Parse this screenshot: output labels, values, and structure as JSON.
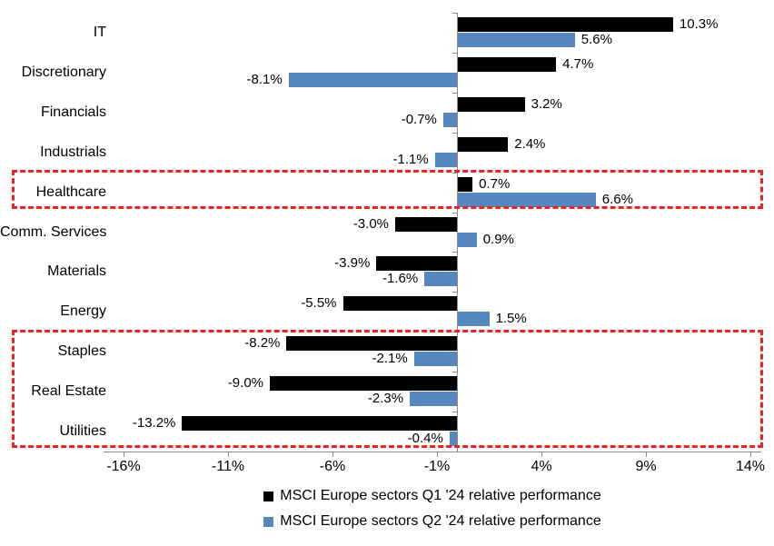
{
  "chart_data": {
    "type": "bar",
    "orientation": "horizontal",
    "title": "",
    "xlabel": "",
    "ylabel": "",
    "value_suffix": "%",
    "categories": [
      "IT",
      "Discretionary",
      "Financials",
      "Industrials",
      "Healthcare",
      "Comm. Services",
      "Materials",
      "Energy",
      "Staples",
      "Real Estate",
      "Utilities"
    ],
    "series": [
      {
        "name": "MSCI Europe sectors Q1 '24 relative performance",
        "color": "#000000",
        "values": [
          10.3,
          4.7,
          3.2,
          2.4,
          0.7,
          -3.0,
          -3.9,
          -5.5,
          -8.2,
          -9.0,
          -13.2
        ],
        "labels": [
          "10.3%",
          "4.7%",
          "3.2%",
          "2.4%",
          "0.7%",
          "-3.0%",
          "-3.9%",
          "-5.5%",
          "-8.2%",
          "-9.0%",
          "-13.2%"
        ]
      },
      {
        "name": "MSCI Europe sectors Q2 '24 relative performance",
        "color": "#5587be",
        "values": [
          5.6,
          -8.1,
          -0.7,
          -1.1,
          6.6,
          0.9,
          -1.6,
          1.5,
          -2.1,
          -2.3,
          -0.4
        ],
        "labels": [
          "5.6%",
          "-8.1%",
          "-0.7%",
          "-1.1%",
          "6.6%",
          "0.9%",
          "-1.6%",
          "1.5%",
          "-2.1%",
          "-2.3%",
          "-0.4%"
        ]
      }
    ],
    "xticks": [
      -16,
      -11,
      -6,
      -1,
      4,
      9,
      14
    ],
    "xtick_labels": [
      "-16%",
      "-11%",
      "-6%",
      "-1%",
      "4%",
      "9%",
      "14%"
    ],
    "xlim": [
      -16.9,
      14.5
    ],
    "grid": false,
    "legend_position": "bottom",
    "highlight_color": "#ed2121",
    "highlight_boxes": [
      {
        "categories": [
          "Healthcare"
        ]
      },
      {
        "categories": [
          "Staples",
          "Real Estate",
          "Utilities"
        ]
      }
    ]
  }
}
